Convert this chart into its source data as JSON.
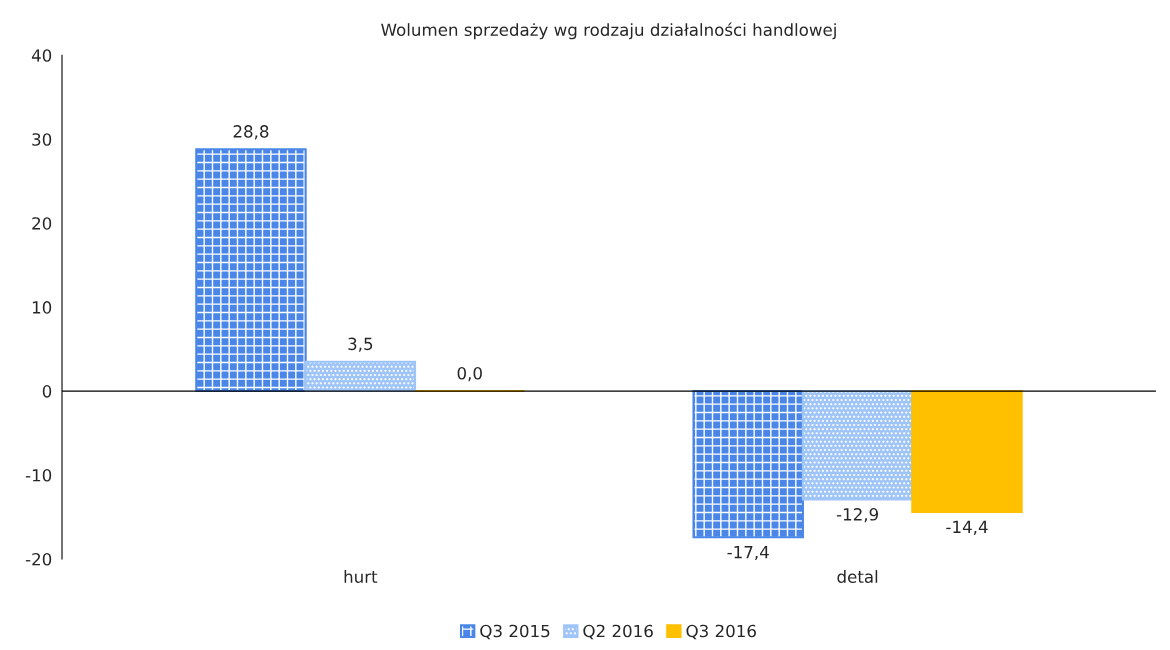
{
  "chart_data": {
    "type": "bar",
    "title": "Wolumen sprzedaży wg rodzaju działalności handlowej",
    "categories": [
      "hurt",
      "detal"
    ],
    "series": [
      {
        "name": "Q3 2015",
        "color": "#4a86e8",
        "values": [
          28.8,
          -17.4
        ],
        "value_labels": [
          "28,8",
          "-17,4"
        ]
      },
      {
        "name": "Q2 2016",
        "color": "#9fc5f8",
        "values": [
          3.5,
          -12.9
        ],
        "value_labels": [
          "3,5",
          "-12,9"
        ]
      },
      {
        "name": "Q3 2016",
        "color": "#ffc000",
        "values": [
          0.0,
          -14.4
        ],
        "value_labels": [
          "0,0",
          "-14,4"
        ]
      }
    ],
    "ylim": [
      -20,
      40
    ],
    "yticks": [
      -20,
      -10,
      0,
      10,
      20,
      30,
      40
    ],
    "ref_lines": [
      {
        "axis": "y",
        "value": 0,
        "color": "#000000"
      }
    ],
    "grid": false,
    "legend": "bottom"
  }
}
